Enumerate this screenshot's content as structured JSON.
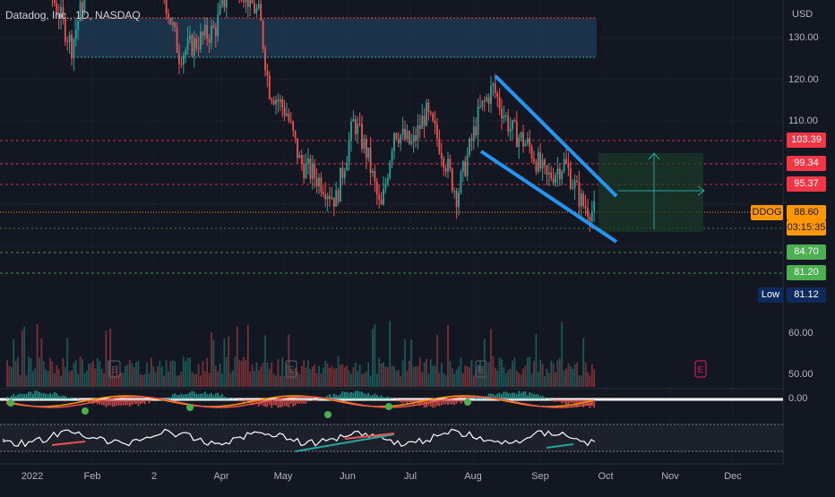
{
  "chart_data": {
    "type": "candlestick",
    "title": "Datadog, Inc., 1D, NASDAQ",
    "currency": "USD",
    "ticker": "DDOG",
    "price_axis_ticks": [
      "130.00",
      "120.00",
      "110.00"
    ],
    "indicator_axis_ticks": [
      "60.00",
      "50.00",
      "0.00"
    ],
    "x_tick_labels": [
      "2022",
      "Feb",
      "2",
      "Apr",
      "May",
      "Jun",
      "Jul",
      "Aug",
      "Sep",
      "Oct",
      "Nov",
      "Dec"
    ],
    "price_levels": [
      {
        "value": "103.39",
        "color": "#f23645"
      },
      {
        "value": "99.34",
        "color": "#f23645"
      },
      {
        "value": "95.37",
        "color": "#f23645"
      },
      {
        "value": "84.70",
        "color": "#4caf50"
      },
      {
        "value": "81.20",
        "color": "#4caf50"
      }
    ],
    "last_price": "88.60",
    "countdown": "03:15:35",
    "low_label": "Low",
    "low_value": "81.12",
    "earnings_marker": "E",
    "pattern": "falling wedge",
    "colors": {
      "up": "#26a69a",
      "down": "#ef5350",
      "wedge": "#2196f3",
      "last_price": "#ff9800",
      "supply_zone": "#1e3a52"
    }
  }
}
